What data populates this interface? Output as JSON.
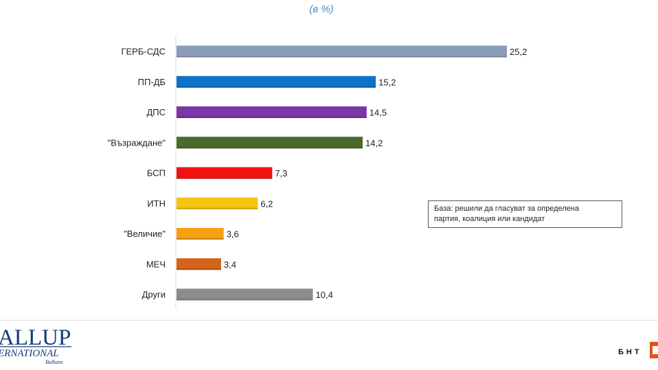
{
  "subtitle": "(в %)",
  "note": {
    "line1": "База: решили да гласуват за определена",
    "line2": "партия, коалиция или кандидат"
  },
  "logos": {
    "gallup_line1": "ALLUP",
    "gallup_line2": "ERNATIONAL",
    "gallup_line3": "Balkans",
    "bnt": "БНТ"
  },
  "chart_data": {
    "type": "bar",
    "orientation": "horizontal",
    "title": "",
    "subtitle": "(в %)",
    "categories": [
      "ГЕРБ-СДС",
      "ПП-ДБ",
      "ДПС",
      "\"Възраждане\"",
      "БСП",
      "ИТН",
      "\"Величие\"",
      "МЕЧ",
      "Други"
    ],
    "values": [
      25.2,
      15.2,
      14.5,
      14.2,
      7.3,
      6.2,
      3.6,
      3.4,
      10.4
    ],
    "value_labels": [
      "25,2",
      "15,2",
      "14,5",
      "14,2",
      "7,3",
      "6,2",
      "3,6",
      "3,4",
      "10,4"
    ],
    "colors": [
      "#8a9cb8",
      "#0d72c9",
      "#7a36a6",
      "#4b6b2a",
      "#f21212",
      "#f5c510",
      "#f5a010",
      "#d4641a",
      "#8c8c8c"
    ],
    "xlim": [
      0,
      25.2
    ],
    "grid": false,
    "legend": "none"
  }
}
